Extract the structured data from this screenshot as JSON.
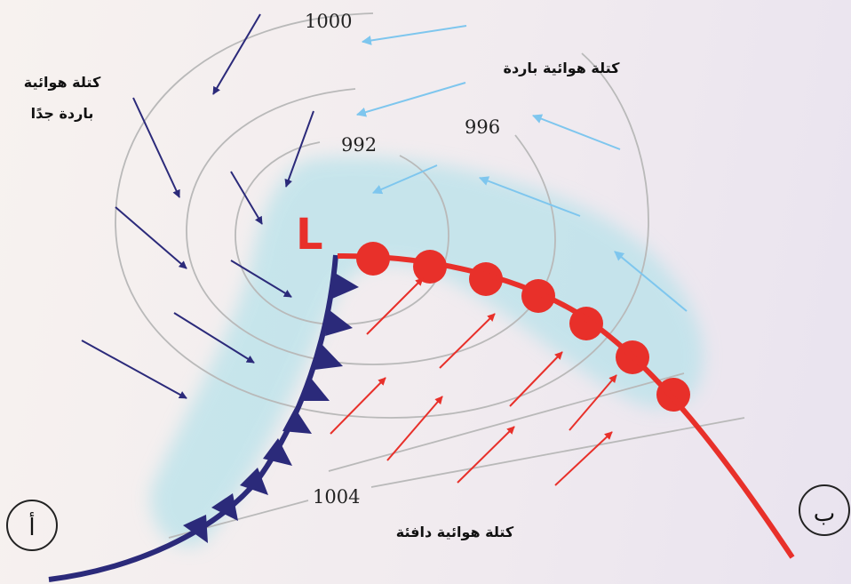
{
  "isobars": [
    {
      "value": "1000"
    },
    {
      "value": "996"
    },
    {
      "value": "992"
    },
    {
      "value": "1004"
    }
  ],
  "air_masses": {
    "very_cold_line1": "كتلة هوائية",
    "very_cold_line2": "باردة جدًا",
    "cold": "كتلة هوائية باردة",
    "warm": "كتلة هوائية دافئة"
  },
  "low_pressure": "L",
  "corner_labels": {
    "a": "أ",
    "b": "ب"
  },
  "colors": {
    "cold_front": "#2b2a7a",
    "warm_front": "#e8302a",
    "cold_arrows": "#2b2a7a",
    "cool_arrows": "#7ec6ee",
    "warm_arrows": "#e8302a",
    "cloud_band": "#b8e2ea",
    "isobars": "#b9b9b9"
  }
}
